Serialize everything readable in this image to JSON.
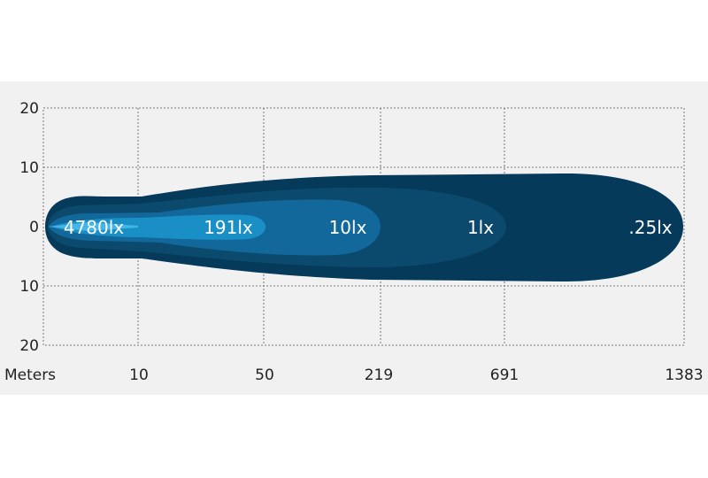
{
  "chart_data": {
    "type": "beam-pattern",
    "xlabel": "Meters",
    "x_ticks": [
      "10",
      "50",
      "219",
      "691",
      "1383"
    ],
    "y_ticks": [
      "20",
      "10",
      "0",
      "10",
      "20"
    ],
    "grid": true,
    "contours": [
      {
        "label": ".25lx",
        "reach_m": 1383,
        "color": "#053a5a"
      },
      {
        "label": "1lx",
        "reach_m": 691,
        "color": "#0b4a6c"
      },
      {
        "label": "10lx",
        "reach_m": 219,
        "color": "#12689a"
      },
      {
        "label": "191lx",
        "reach_m": 50,
        "color": "#1a8fc6"
      },
      {
        "label": "4780lx",
        "reach_m": 10,
        "color": "#43b5e6"
      }
    ]
  }
}
